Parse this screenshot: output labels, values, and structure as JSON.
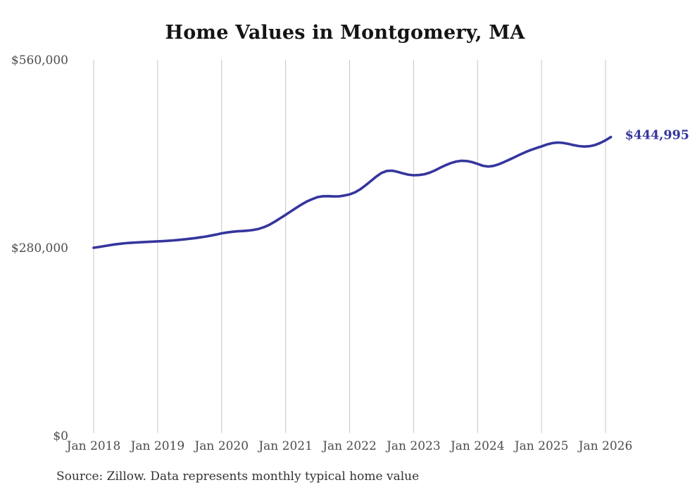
{
  "chart": {
    "title": "Home Values in Montgomery, MA",
    "source_note": "Source: Zillow. Data represents monthly typical home value",
    "end_label": "$444,995",
    "colors": {
      "line": "#35359e",
      "end_label": "#35359e",
      "grid": "#c6c6c6",
      "title": "#141414",
      "axis_label": "#4d4d4d",
      "source": "#333333",
      "background": "#ffffff"
    }
  },
  "chart_data": {
    "type": "line",
    "title": "Home Values in Montgomery, MA",
    "series_name": "Monthly typical home value",
    "x_frequency": "monthly",
    "x_start": "Jan 2018",
    "x_end": "Feb 2026",
    "x_tick_labels": [
      "Jan 2018",
      "Jan 2019",
      "Jan 2020",
      "Jan 2021",
      "Jan 2022",
      "Jan 2023",
      "Jan 2024",
      "Jan 2025",
      "Jan 2026"
    ],
    "y_tick_labels": [
      "$0",
      "$280,000",
      "$560,000"
    ],
    "y_tick_values": [
      0,
      280000,
      560000
    ],
    "ylim": [
      0,
      560000
    ],
    "grid": "vertical-only",
    "legend": "none",
    "final_value": 444995,
    "final_value_label": "$444,995",
    "values": [
      280000,
      281200,
      282500,
      283800,
      285000,
      286000,
      286800,
      287400,
      287900,
      288300,
      288700,
      289100,
      289500,
      289900,
      290400,
      291000,
      291700,
      292500,
      293400,
      294400,
      295500,
      296700,
      298100,
      299700,
      301500,
      302800,
      303800,
      304500,
      305000,
      305600,
      306600,
      308200,
      310800,
      314400,
      319000,
      324000,
      329000,
      334200,
      339500,
      344500,
      349000,
      352500,
      355500,
      356800,
      356900,
      356400,
      356600,
      357800,
      359500,
      362500,
      367000,
      373000,
      379500,
      386000,
      391500,
      394500,
      394800,
      393200,
      390800,
      389000,
      388000,
      388300,
      389500,
      391800,
      395200,
      399200,
      403000,
      406200,
      408500,
      409600,
      409200,
      407500,
      405000,
      402200,
      401000,
      402000,
      404500,
      407800,
      411400,
      415200,
      419000,
      422500,
      425700,
      428500,
      431000,
      433800,
      435800,
      436800,
      436300,
      434800,
      433000,
      431500,
      430800,
      431300,
      433000,
      436000,
      440000,
      444995
    ]
  }
}
